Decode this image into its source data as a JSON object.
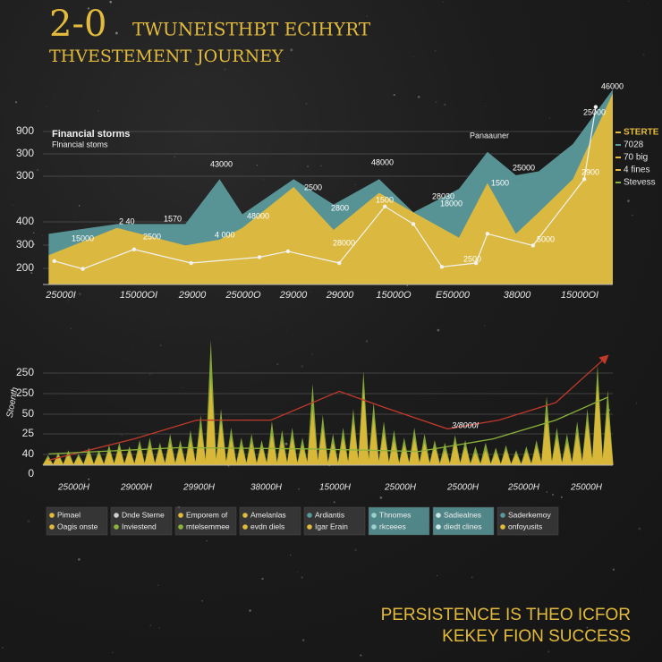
{
  "header": {
    "number": "2-0",
    "title": "TWUNEISTHBT ECIHYRT",
    "subtitle": "THVESTEMENT JOURNEY"
  },
  "chart_data": [
    {
      "type": "area",
      "labels": [
        "Financial storms",
        "Flnancial stoms",
        "Panaauner"
      ],
      "y_axis_labels": [
        "900",
        "300",
        "300",
        "400",
        "300",
        "200"
      ],
      "x_axis_labels": [
        "25000I",
        "15000OI",
        "29000",
        "25000O",
        "29000",
        "29000",
        "15000O",
        "E50000",
        "38000",
        "15000OI"
      ],
      "xlim": [
        0,
        100
      ],
      "ylim": [
        0,
        100
      ],
      "series": [
        {
          "type": "area",
          "color": "#5b9a9c",
          "x": [
            1,
            13,
            25,
            31,
            35,
            44,
            51,
            59,
            65,
            73,
            78,
            83,
            87,
            93,
            100
          ],
          "values": [
            26,
            31,
            31,
            54,
            36,
            54,
            41,
            54,
            37,
            49,
            68,
            56,
            58,
            72,
            100
          ]
        },
        {
          "type": "area",
          "color": "#e3bb3c",
          "x": [
            1,
            13,
            25,
            31,
            35,
            44,
            51,
            59,
            65,
            73,
            78,
            83,
            87,
            93,
            100
          ],
          "values": [
            15,
            29,
            20,
            23,
            29,
            50,
            28,
            47,
            37,
            24,
            52,
            26,
            37,
            54,
            98
          ]
        },
        {
          "type": "line",
          "color": "#f2f2f2",
          "x": [
            2,
            7,
            16,
            26,
            38,
            43,
            52,
            60,
            65,
            70,
            76,
            78,
            86,
            95,
            97
          ],
          "values": [
            12,
            8,
            18,
            11,
            14,
            17,
            11,
            40,
            31,
            9,
            11,
            26,
            20,
            54,
            91
          ]
        }
      ],
      "annotations": [
        "43000",
        "48000",
        "2500",
        "15000",
        "2 40",
        "1570",
        "48000",
        "4 000",
        "2500",
        "2800",
        "1500",
        "28000",
        "28030",
        "18000",
        "1500",
        "25000",
        "2900",
        "5000",
        "2500",
        "25000",
        "46000"
      ],
      "legend": [
        {
          "label": "STERTE",
          "color": "#e3bb3c"
        },
        {
          "label": "7028",
          "color": "#5b9a9c"
        },
        {
          "label": "70 big",
          "color": "#e3bb3c"
        },
        {
          "label": "4 fines",
          "color": "#e3bb3c"
        },
        {
          "label": "Stevess",
          "color": "#8db33a"
        }
      ]
    },
    {
      "type": "bar",
      "side_label": "Stoenth",
      "y_axis_labels": [
        "250",
        "250",
        "50",
        "25",
        "40",
        "0"
      ],
      "x_axis_labels": [
        "25000H",
        "29000H",
        "29900H",
        "38000H",
        "15000H",
        "25000H",
        "25000H",
        "25000H",
        "25000H"
      ],
      "xlim": [
        0,
        100
      ],
      "ylim": [
        0,
        100
      ],
      "series": [
        {
          "type": "bar",
          "color": "#8db33a",
          "values": [
            8,
            10,
            12,
            9,
            14,
            12,
            16,
            18,
            15,
            20,
            22,
            18,
            25,
            20,
            28,
            40,
            100,
            45,
            30,
            22,
            25,
            20,
            35,
            28,
            30,
            22,
            65,
            40,
            25,
            30,
            45,
            75,
            50,
            35,
            28,
            22,
            30,
            25,
            20,
            18,
            24,
            20,
            15,
            18,
            14,
            16,
            12,
            15,
            20,
            55,
            30,
            25,
            35,
            45,
            80,
            60
          ]
        },
        {
          "type": "bar",
          "color": "#e0b93a",
          "values": [
            6,
            8,
            9,
            7,
            10,
            9,
            12,
            14,
            12,
            15,
            16,
            14,
            18,
            15,
            20,
            30,
            70,
            35,
            22,
            16,
            18,
            15,
            25,
            20,
            22,
            16,
            45,
            30,
            18,
            22,
            35,
            60,
            38,
            26,
            20,
            16,
            22,
            18,
            15,
            12,
            18,
            15,
            10,
            12,
            10,
            12,
            9,
            11,
            15,
            40,
            22,
            18,
            26,
            35,
            65,
            45
          ]
        },
        {
          "type": "line",
          "color": "#c0392b",
          "x": [
            1,
            16,
            27,
            40,
            52,
            60,
            71,
            80,
            90,
            99
          ],
          "values": [
            4,
            21,
            36,
            36,
            59,
            46,
            29,
            36,
            50,
            87
          ]
        },
        {
          "type": "line",
          "color": "#8db33a",
          "x": [
            1,
            24,
            47,
            66,
            79,
            90,
            99
          ],
          "values": [
            9,
            14,
            13,
            11,
            21,
            36,
            54
          ]
        }
      ],
      "annotations": [
        "3/8000I"
      ]
    }
  ],
  "legend_boxes": [
    {
      "color": "#3a3a3a",
      "items": [
        {
          "label": "Pimael",
          "color": "#e3bb3c"
        },
        {
          "label": "Oagis onste",
          "color": "#e3bb3c"
        }
      ]
    },
    {
      "color": "#3a3a3a",
      "items": [
        {
          "label": "Dnde Sterne",
          "color": "#cfcfcf"
        },
        {
          "label": "Inviestend",
          "color": "#8db33a"
        }
      ]
    },
    {
      "color": "#3a3a3a",
      "items": [
        {
          "label": "Emporem of",
          "color": "#e3bb3c"
        },
        {
          "label": "mtelsemmee",
          "color": "#8db33a"
        }
      ]
    },
    {
      "color": "#3a3a3a",
      "items": [
        {
          "label": "Amelanlas",
          "color": "#e3bb3c"
        },
        {
          "label": "evdn diels",
          "color": "#e3bb3c"
        }
      ]
    },
    {
      "color": "#3a3a3a",
      "items": [
        {
          "label": "Ardiantis",
          "color": "#5b9a9c"
        },
        {
          "label": "Igar Erain",
          "color": "#e3bb3c"
        }
      ]
    },
    {
      "color": "#5b9a9c",
      "items": [
        {
          "label": "Thnomes",
          "color": "#9fd0d0"
        },
        {
          "label": "rkceees",
          "color": "#9fd0d0"
        }
      ]
    },
    {
      "color": "#5b9a9c",
      "items": [
        {
          "label": "Sadiealnes",
          "color": "#cfe6e6"
        },
        {
          "label": "diedt clines",
          "color": "#cfe6e6"
        }
      ]
    },
    {
      "color": "#3a3a3a",
      "items": [
        {
          "label": "Saderkemoy",
          "color": "#5b9a9c"
        },
        {
          "label": "onfoyusits",
          "color": "#e3bb3c"
        }
      ]
    }
  ],
  "footer": [
    "PERSISTENCE IS THEO ICFOR",
    "KEKEY FION SUCCESS"
  ]
}
